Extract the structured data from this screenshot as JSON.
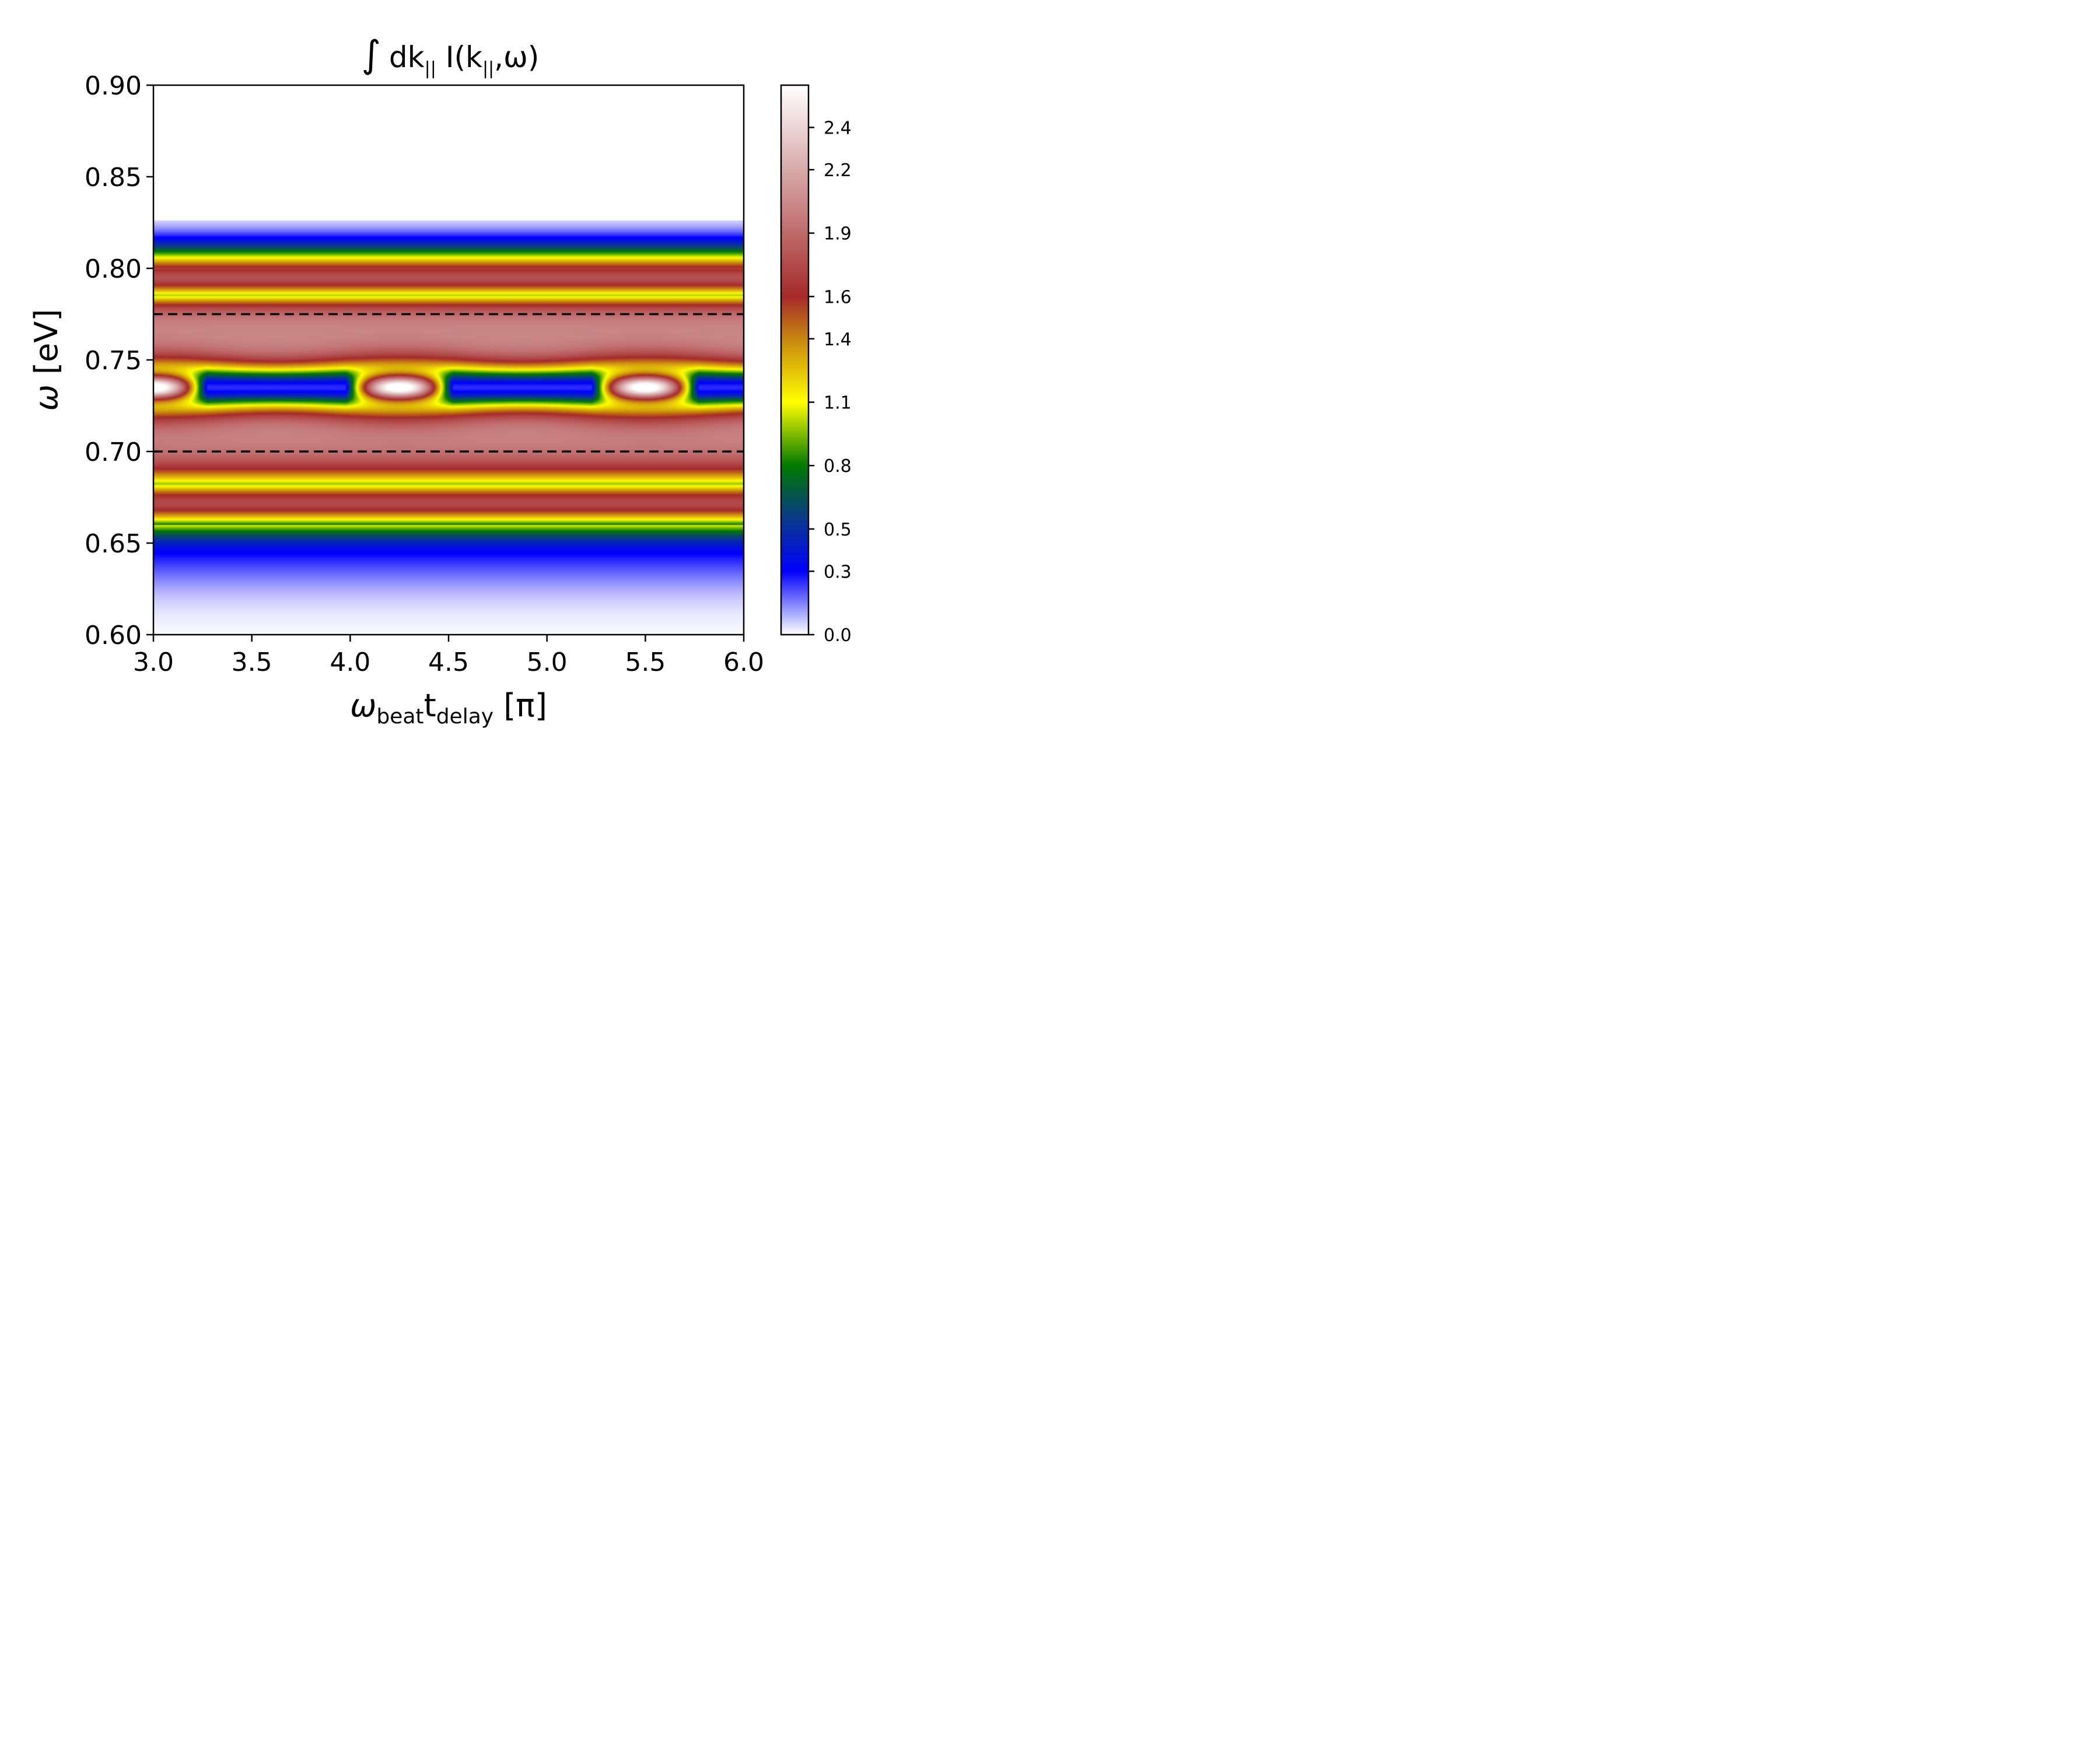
{
  "chart_data": {
    "type": "heatmap",
    "title": {
      "integral": "∫",
      "prefix": "dk",
      "sub1": "||",
      "mid": " I(k",
      "sub2": "||",
      "suffix": ",ω)"
    },
    "xlabel": {
      "omega": "ω",
      "sub_beat": "beat",
      "t": "t",
      "sub_delay": "delay",
      "unit": " [π]"
    },
    "ylabel": {
      "omega": "ω",
      "unit": " [eV]"
    },
    "xlim": [
      3.0,
      6.0
    ],
    "ylim": [
      0.6,
      0.9
    ],
    "xticks": [
      "3.0",
      "3.5",
      "4.0",
      "4.5",
      "5.0",
      "5.5",
      "6.0"
    ],
    "yticks": [
      "0.60",
      "0.65",
      "0.70",
      "0.75",
      "0.80",
      "0.85",
      "0.90"
    ],
    "colorbar": {
      "range": [
        0.0,
        2.6
      ],
      "ticks": [
        "0.0",
        "0.3",
        "0.5",
        "0.8",
        "1.1",
        "1.4",
        "1.6",
        "1.9",
        "2.2",
        "2.4"
      ],
      "stops": [
        {
          "v": 0.0,
          "color": "#ffffff"
        },
        {
          "v": 0.3,
          "color": "#0000ff"
        },
        {
          "v": 0.55,
          "color": "#0a3a8a"
        },
        {
          "v": 0.8,
          "color": "#007a00"
        },
        {
          "v": 1.1,
          "color": "#ffff00"
        },
        {
          "v": 1.4,
          "color": "#c8860f"
        },
        {
          "v": 1.6,
          "color": "#a52a2a"
        },
        {
          "v": 2.2,
          "color": "#d8aaaa"
        },
        {
          "v": 2.6,
          "color": "#ffffff"
        }
      ]
    },
    "dashed_lines_y": [
      0.7,
      0.775
    ],
    "model": {
      "upper_band_center": 0.795,
      "upper_band_sigma": 0.0125,
      "upper_band_amp": 1.78,
      "inner_center": 0.735,
      "inner_sigma": 0.013,
      "inner_amp": 2.4,
      "inner_mod_amp": 0.25,
      "inner_period_pi": 1.25,
      "inner_peak_x": 3.0,
      "middle_base": 0.25,
      "middle_plateau_amp": 2.05,
      "lower_band_center": 0.672,
      "lower_band_sigma": 0.0135,
      "lower_band_amp": 1.75,
      "tail_low_amp": 0.32,
      "tail_high_amp": 0.1
    }
  }
}
